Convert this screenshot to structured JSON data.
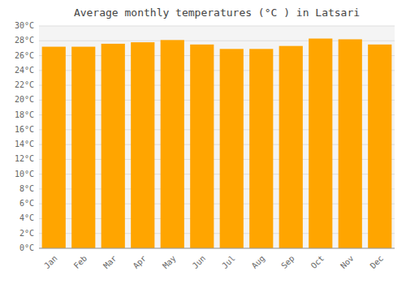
{
  "chart_data": {
    "type": "bar",
    "title": "Average monthly temperatures (°C ) in Latsari",
    "categories": [
      "Jan",
      "Feb",
      "Mar",
      "Apr",
      "May",
      "Jun",
      "Jul",
      "Aug",
      "Sep",
      "Oct",
      "Nov",
      "Dec"
    ],
    "values": [
      27.2,
      27.2,
      27.6,
      27.8,
      28.1,
      27.5,
      26.9,
      26.9,
      27.3,
      28.3,
      28.2,
      27.5
    ],
    "color": "#FFA500",
    "ylim": [
      0,
      30
    ],
    "yticks": [
      {
        "value": 0,
        "label": "0°C"
      },
      {
        "value": 2,
        "label": "2°C"
      },
      {
        "value": 4,
        "label": "4°C"
      },
      {
        "value": 6,
        "label": "6°C"
      },
      {
        "value": 8,
        "label": "8°C"
      },
      {
        "value": 10,
        "label": "10°C"
      },
      {
        "value": 12,
        "label": "12°C"
      },
      {
        "value": 14,
        "label": "14°C"
      },
      {
        "value": 16,
        "label": "16°C"
      },
      {
        "value": 18,
        "label": "18°C"
      },
      {
        "value": 20,
        "label": "20°C"
      },
      {
        "value": 22,
        "label": "22°C"
      },
      {
        "value": 24,
        "label": "24°C"
      },
      {
        "value": 26,
        "label": "26°C"
      },
      {
        "value": 28,
        "label": "28°C"
      },
      {
        "value": 30,
        "label": "30°C"
      }
    ],
    "grid": true
  }
}
